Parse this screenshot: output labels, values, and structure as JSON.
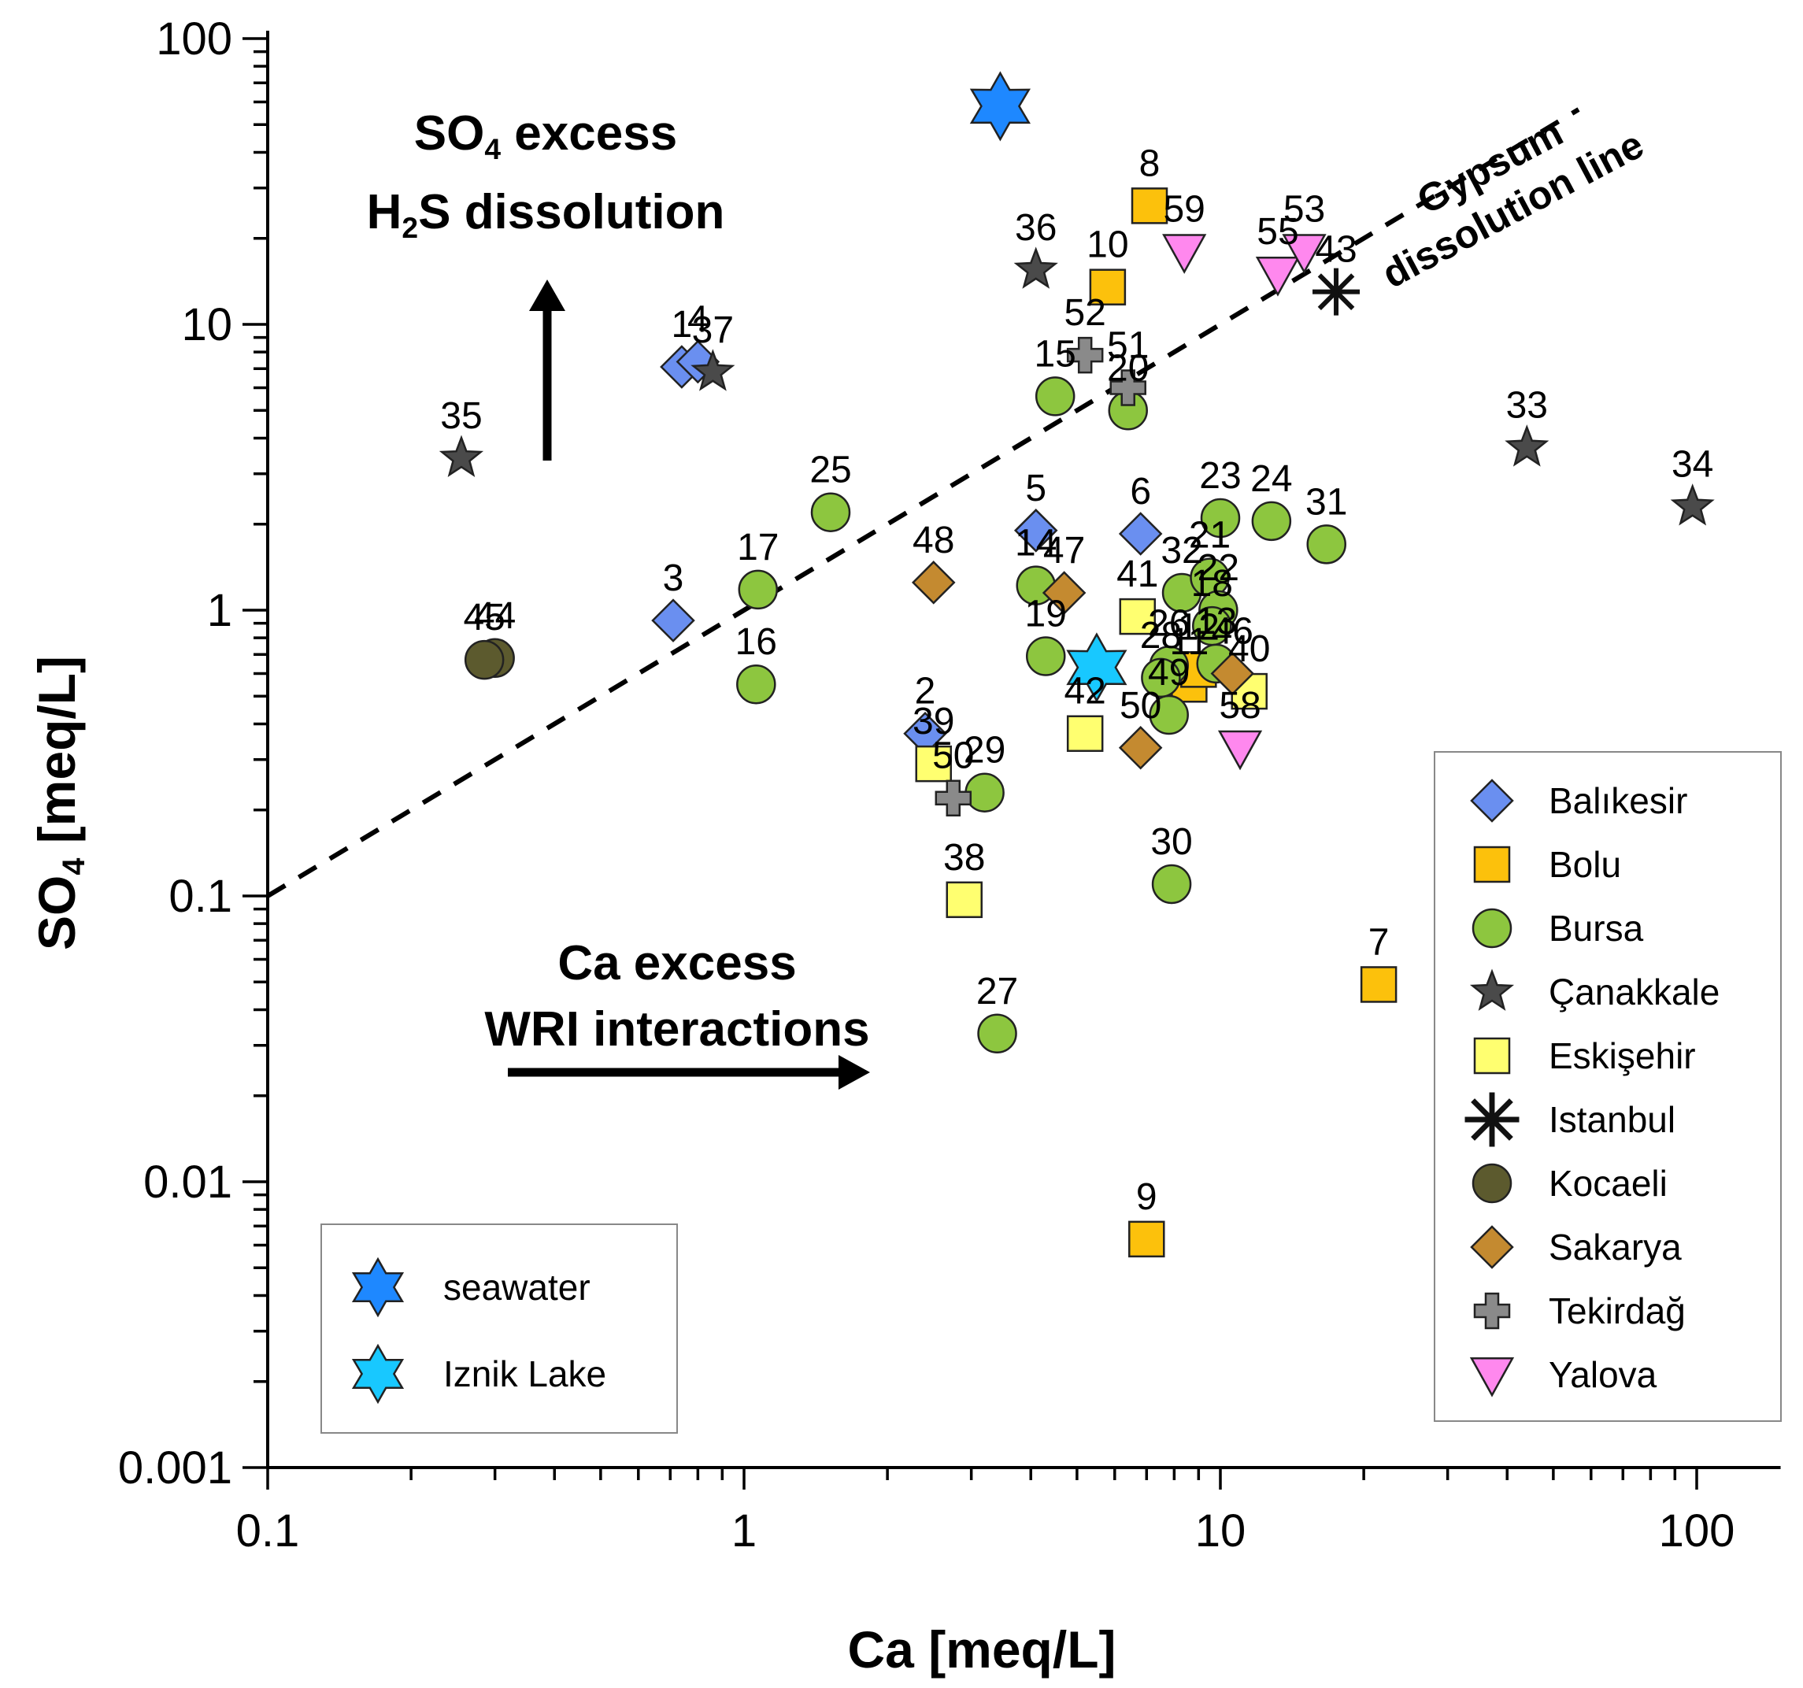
{
  "chart_data": {
    "type": "scatter",
    "xscale": "log",
    "yscale": "log",
    "xlim": [
      0.1,
      150
    ],
    "ylim": [
      0.001,
      100
    ],
    "xlabel": "Ca [meq/L]",
    "ylabel": "SO4 [meq/L]",
    "xticks": [
      "0.1",
      "1",
      "10",
      "100"
    ],
    "yticks": [
      "0.001",
      "0.01",
      "0.1",
      "1",
      "10",
      "100"
    ],
    "annotations": {
      "so4_line1": "SO4 excess",
      "so4_line2": "H2S dissolution",
      "ca_line1": "Ca excess",
      "ca_line2": "WRI interactions",
      "gypsum_line1": "Gypsum",
      "gypsum_line2": "dissolution line"
    },
    "reference_line": {
      "name": "Gypsum dissolution line",
      "x": [
        0.1,
        100
      ],
      "y": [
        0.1,
        100
      ]
    },
    "colors": {
      "Balıkesir": "#6a8ff0",
      "Bolu": "#fcc10c",
      "Bursa": "#8dc63f",
      "Çanakkale": "#4a4a4a",
      "Eskişehir": "#ffff70",
      "Istanbul": "#111111",
      "Kocaeli": "#5c5a2e",
      "Sakarya": "#c48a30",
      "Tekirdağ": "#8a8a8a",
      "Yalova": "#ff88ee",
      "seawater": "#1e88ff",
      "Iznik Lake": "#18c8ff"
    },
    "legend": [
      {
        "name": "Balıkesir",
        "marker": "diamond"
      },
      {
        "name": "Bolu",
        "marker": "square"
      },
      {
        "name": "Bursa",
        "marker": "circle"
      },
      {
        "name": "Çanakkale",
        "marker": "star5"
      },
      {
        "name": "Eskişehir",
        "marker": "square"
      },
      {
        "name": "Istanbul",
        "marker": "asterisk"
      },
      {
        "name": "Kocaeli",
        "marker": "circle"
      },
      {
        "name": "Sakarya",
        "marker": "diamond"
      },
      {
        "name": "Tekirdağ",
        "marker": "cross"
      },
      {
        "name": "Yalova",
        "marker": "triangle-down"
      }
    ],
    "legend2": [
      {
        "name": "seawater",
        "marker": "star6"
      },
      {
        "name": "Iznik Lake",
        "marker": "star6"
      }
    ],
    "series": [
      {
        "name": "Balıkesir",
        "marker": "diamond",
        "points": [
          {
            "label": "1",
            "x": 0.74,
            "y": 7.1
          },
          {
            "label": "4",
            "x": 0.8,
            "y": 7.4
          },
          {
            "label": "3",
            "x": 0.71,
            "y": 0.92
          },
          {
            "label": "5",
            "x": 4.1,
            "y": 1.9
          },
          {
            "label": "6",
            "x": 6.8,
            "y": 1.85
          },
          {
            "label": "2",
            "x": 2.4,
            "y": 0.37
          }
        ]
      },
      {
        "name": "Bolu",
        "marker": "square",
        "points": [
          {
            "label": "8",
            "x": 7.1,
            "y": 26
          },
          {
            "label": "10",
            "x": 5.8,
            "y": 13.5
          },
          {
            "label": "7",
            "x": 21.5,
            "y": 0.049
          },
          {
            "label": "9",
            "x": 7.0,
            "y": 0.0063
          },
          {
            "label": "11",
            "x": 8.6,
            "y": 0.55
          },
          {
            "label": "12",
            "x": 9.0,
            "y": 0.62
          }
        ]
      },
      {
        "name": "Bursa",
        "marker": "circle",
        "points": [
          {
            "label": "15",
            "x": 4.5,
            "y": 5.6
          },
          {
            "label": "20",
            "x": 6.4,
            "y": 5.0
          },
          {
            "label": "25",
            "x": 1.52,
            "y": 2.2
          },
          {
            "label": "17",
            "x": 1.07,
            "y": 1.18
          },
          {
            "label": "16",
            "x": 1.06,
            "y": 0.55
          },
          {
            "label": "14",
            "x": 4.1,
            "y": 1.22
          },
          {
            "label": "19",
            "x": 4.3,
            "y": 0.69
          },
          {
            "label": "23",
            "x": 10.0,
            "y": 2.1
          },
          {
            "label": "24",
            "x": 12.8,
            "y": 2.05
          },
          {
            "label": "31",
            "x": 16.7,
            "y": 1.7
          },
          {
            "label": "32",
            "x": 8.3,
            "y": 1.15
          },
          {
            "label": "21",
            "x": 9.5,
            "y": 1.3
          },
          {
            "label": "22",
            "x": 9.9,
            "y": 1.0
          },
          {
            "label": "18",
            "x": 9.6,
            "y": 0.88
          },
          {
            "label": "26",
            "x": 7.8,
            "y": 0.64
          },
          {
            "label": "13",
            "x": 9.8,
            "y": 0.65
          },
          {
            "label": "28",
            "x": 7.5,
            "y": 0.58
          },
          {
            "label": "49",
            "x": 7.8,
            "y": 0.43
          },
          {
            "label": "29",
            "x": 3.2,
            "y": 0.23
          },
          {
            "label": "30",
            "x": 7.9,
            "y": 0.11
          },
          {
            "label": "27",
            "x": 3.4,
            "y": 0.033
          }
        ]
      },
      {
        "name": "Çanakkale",
        "marker": "star5",
        "points": [
          {
            "label": "36",
            "x": 4.1,
            "y": 15.5
          },
          {
            "label": "37",
            "x": 0.86,
            "y": 6.8
          },
          {
            "label": "35",
            "x": 0.255,
            "y": 3.4
          },
          {
            "label": "33",
            "x": 44,
            "y": 3.7
          },
          {
            "label": "34",
            "x": 98,
            "y": 2.3
          }
        ]
      },
      {
        "name": "Eskişehir",
        "marker": "square",
        "points": [
          {
            "label": "41",
            "x": 6.7,
            "y": 0.95
          },
          {
            "label": "39",
            "x": 2.5,
            "y": 0.29
          },
          {
            "label": "42",
            "x": 5.2,
            "y": 0.37
          },
          {
            "label": "38",
            "x": 2.9,
            "y": 0.097
          },
          {
            "label": "40",
            "x": 11.5,
            "y": 0.52
          }
        ]
      },
      {
        "name": "Istanbul",
        "marker": "asterisk",
        "points": [
          {
            "label": "43",
            "x": 17.5,
            "y": 13
          }
        ]
      },
      {
        "name": "Kocaeli",
        "marker": "circle",
        "points": [
          {
            "label": "44",
            "x": 0.3,
            "y": 0.68
          },
          {
            "label": "45",
            "x": 0.285,
            "y": 0.67
          }
        ]
      },
      {
        "name": "Sakarya",
        "marker": "diamond",
        "points": [
          {
            "label": "48",
            "x": 2.5,
            "y": 1.25
          },
          {
            "label": "47",
            "x": 4.7,
            "y": 1.15
          },
          {
            "label": "46",
            "x": 10.6,
            "y": 0.6
          },
          {
            "label": "50",
            "x": 6.8,
            "y": 0.33
          }
        ]
      },
      {
        "name": "Tekirdağ",
        "marker": "cross",
        "points": [
          {
            "label": "52",
            "x": 5.2,
            "y": 7.8
          },
          {
            "label": "51",
            "x": 6.4,
            "y": 6.0
          },
          {
            "label": "50",
            "x": 2.75,
            "y": 0.22
          }
        ]
      },
      {
        "name": "Yalova",
        "marker": "triangle-down",
        "points": [
          {
            "label": "59",
            "x": 8.4,
            "y": 18
          },
          {
            "label": "55",
            "x": 13.2,
            "y": 15
          },
          {
            "label": "53",
            "x": 15.0,
            "y": 18
          },
          {
            "label": "58",
            "x": 11.0,
            "y": 0.33
          }
        ]
      },
      {
        "name": "seawater",
        "marker": "star6",
        "points": [
          {
            "label": "",
            "x": 3.45,
            "y": 58
          }
        ]
      },
      {
        "name": "Iznik Lake",
        "marker": "star6",
        "points": [
          {
            "label": "",
            "x": 5.5,
            "y": 0.63
          }
        ]
      }
    ]
  }
}
